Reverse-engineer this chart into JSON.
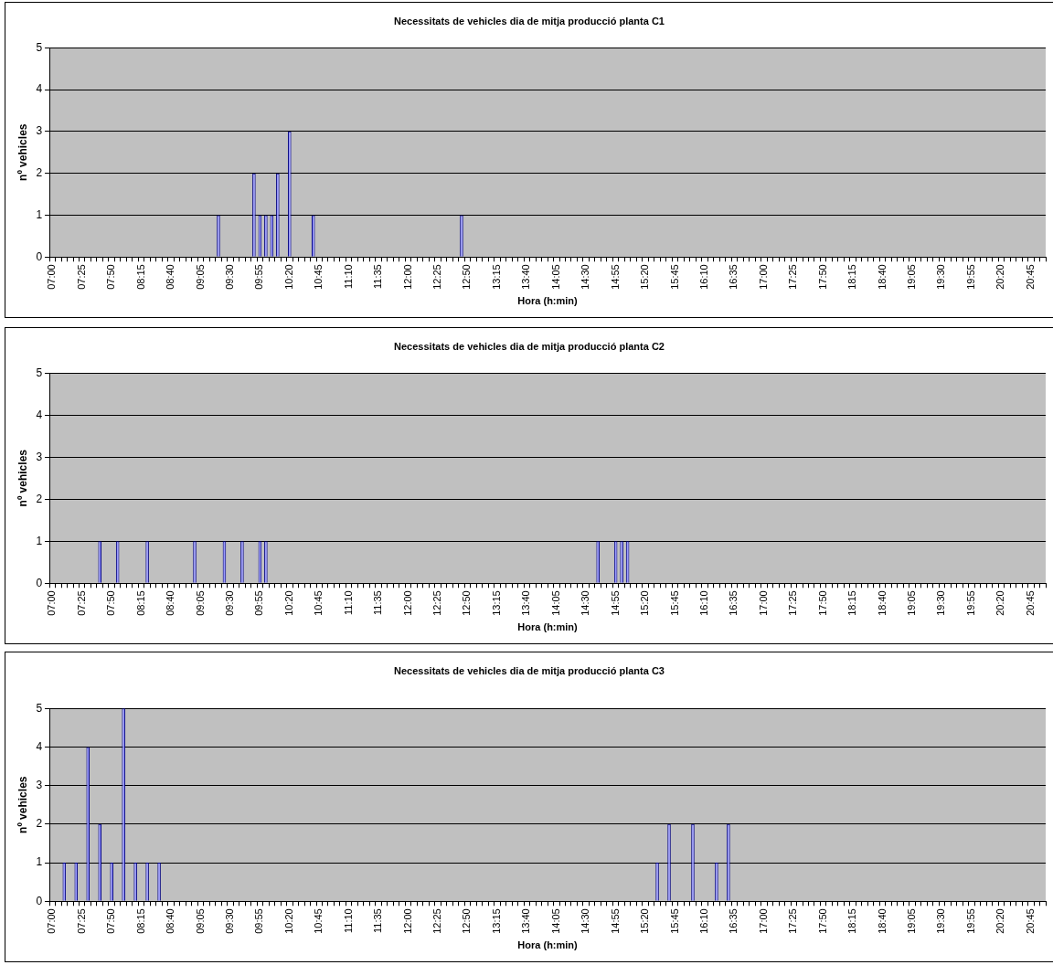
{
  "chart_data": [
    {
      "type": "bar",
      "title": "Necessitats de vehicles dia de mitja producció planta C1",
      "xlabel": "Hora (h:min)",
      "ylabel": "nº vehicles",
      "categories": [
        "07:00",
        null,
        null,
        null,
        null,
        "07:25",
        null,
        null,
        null,
        null,
        "07:50",
        null,
        null,
        null,
        null,
        "08:15",
        null,
        null,
        null,
        null,
        "08:40",
        null,
        null,
        null,
        null,
        "09:05",
        null,
        null,
        null,
        null,
        "09:30",
        null,
        null,
        null,
        null,
        "09:55",
        null,
        null,
        null,
        null,
        "10:20",
        null,
        null,
        null,
        null,
        "10:45",
        null,
        null,
        null,
        null,
        "11:10",
        null,
        null,
        null,
        null,
        "11:35",
        null,
        null,
        null,
        null,
        "12:00",
        null,
        null,
        null,
        null,
        "12:25",
        null,
        null,
        null,
        null,
        "12:50",
        null,
        null,
        null,
        null,
        "13:15",
        null,
        null,
        null,
        null,
        "13:40",
        null,
        null,
        null,
        null,
        "14:05",
        null,
        null,
        null,
        null,
        "14:30",
        null,
        null,
        null,
        null,
        "14:55",
        null,
        null,
        null,
        null,
        "15:20",
        null,
        null,
        null,
        null,
        "15:45",
        null,
        null,
        null,
        null,
        "16:10",
        null,
        null,
        null,
        null,
        "16:35",
        null,
        null,
        null,
        null,
        "17:00",
        null,
        null,
        null,
        null,
        "17:25",
        null,
        null,
        null,
        null,
        "17:50",
        null,
        null,
        null,
        null,
        "18:15",
        null,
        null,
        null,
        null,
        "18:40",
        null,
        null,
        null,
        null,
        "19:05",
        null,
        null,
        null,
        null,
        "19:30",
        null,
        null,
        null,
        null,
        "19:55",
        null,
        null,
        null,
        null,
        "20:20",
        null,
        null,
        null,
        null,
        "20:45",
        null,
        null
      ],
      "values": [
        0,
        0,
        0,
        0,
        0,
        0,
        0,
        0,
        0,
        0,
        0,
        0,
        0,
        0,
        0,
        0,
        0,
        0,
        0,
        0,
        0,
        0,
        0,
        0,
        0,
        0,
        0,
        0,
        1,
        0,
        0,
        0,
        0,
        0,
        2,
        1,
        1,
        1,
        2,
        0,
        3,
        0,
        0,
        0,
        1,
        0,
        0,
        0,
        0,
        0,
        0,
        0,
        0,
        0,
        0,
        0,
        0,
        0,
        0,
        0,
        0,
        0,
        0,
        0,
        0,
        0,
        0,
        0,
        0,
        1,
        0,
        0,
        0,
        0,
        0,
        0,
        0,
        0,
        0,
        0,
        0,
        0,
        0,
        0,
        0,
        0,
        0,
        0,
        0,
        0,
        0,
        0,
        0,
        0,
        0,
        0,
        0,
        0,
        0,
        0,
        0,
        0,
        0,
        0,
        0,
        0,
        0,
        0,
        0,
        0,
        0,
        0,
        0,
        0,
        0,
        0,
        0,
        0,
        0,
        0,
        0,
        0,
        0,
        0,
        0,
        0,
        0,
        0,
        0,
        0,
        0,
        0,
        0,
        0,
        0,
        0,
        0,
        0,
        0,
        0,
        0,
        0,
        0,
        0,
        0,
        0,
        0,
        0,
        0,
        0,
        0,
        0,
        0,
        0,
        0,
        0,
        0,
        0,
        0,
        0,
        0,
        0,
        0,
        0,
        0,
        0,
        0,
        0
      ],
      "color": "#9999ff",
      "ylim": [
        0,
        5
      ],
      "yticks": [
        0,
        1,
        2,
        3,
        4,
        5
      ],
      "grid": "y",
      "legend": false
    },
    {
      "type": "bar",
      "title": "Necessitats de vehicles dia de mitja producció planta C2",
      "xlabel": "Hora (h:min)",
      "ylabel": "nº vehicles",
      "categories": [
        "07:00",
        null,
        null,
        null,
        null,
        "07:25",
        null,
        null,
        null,
        null,
        "07:50",
        null,
        null,
        null,
        null,
        "08:15",
        null,
        null,
        null,
        null,
        "08:40",
        null,
        null,
        null,
        null,
        "09:05",
        null,
        null,
        null,
        null,
        "09:30",
        null,
        null,
        null,
        null,
        "09:55",
        null,
        null,
        null,
        null,
        "10:20",
        null,
        null,
        null,
        null,
        "10:45",
        null,
        null,
        null,
        null,
        "11:10",
        null,
        null,
        null,
        null,
        "11:35",
        null,
        null,
        null,
        null,
        "12:00",
        null,
        null,
        null,
        null,
        "12:25",
        null,
        null,
        null,
        null,
        "12:50",
        null,
        null,
        null,
        null,
        "13:15",
        null,
        null,
        null,
        null,
        "13:40",
        null,
        null,
        null,
        null,
        "14:05",
        null,
        null,
        null,
        null,
        "14:30",
        null,
        null,
        null,
        null,
        "14:55",
        null,
        null,
        null,
        null,
        "15:20",
        null,
        null,
        null,
        null,
        "15:45",
        null,
        null,
        null,
        null,
        "16:10",
        null,
        null,
        null,
        null,
        "16:35",
        null,
        null,
        null,
        null,
        "17:00",
        null,
        null,
        null,
        null,
        "17:25",
        null,
        null,
        null,
        null,
        "17:50",
        null,
        null,
        null,
        null,
        "18:15",
        null,
        null,
        null,
        null,
        "18:40",
        null,
        null,
        null,
        null,
        "19:05",
        null,
        null,
        null,
        null,
        "19:30",
        null,
        null,
        null,
        null,
        "19:55",
        null,
        null,
        null,
        null,
        "20:20",
        null,
        null,
        null,
        null,
        "20:45",
        null,
        null
      ],
      "values": [
        0,
        0,
        0,
        0,
        0,
        0,
        0,
        0,
        1,
        0,
        0,
        1,
        0,
        0,
        0,
        0,
        1,
        0,
        0,
        0,
        0,
        0,
        0,
        0,
        1,
        0,
        0,
        0,
        0,
        1,
        0,
        0,
        1,
        0,
        0,
        1,
        1,
        0,
        0,
        0,
        0,
        0,
        0,
        0,
        0,
        0,
        0,
        0,
        0,
        0,
        0,
        0,
        0,
        0,
        0,
        0,
        0,
        0,
        0,
        0,
        0,
        0,
        0,
        0,
        0,
        0,
        0,
        0,
        0,
        0,
        0,
        0,
        0,
        0,
        0,
        0,
        0,
        0,
        0,
        0,
        0,
        0,
        0,
        0,
        0,
        0,
        0,
        0,
        0,
        0,
        0,
        0,
        1,
        0,
        0,
        1,
        1,
        1,
        0,
        0,
        0,
        0,
        0,
        0,
        0,
        0,
        0,
        0,
        0,
        0,
        0,
        0,
        0,
        0,
        0,
        0,
        0,
        0,
        0,
        0,
        0,
        0,
        0,
        0,
        0,
        0,
        0,
        0,
        0,
        0,
        0,
        0,
        0,
        0,
        0,
        0,
        0,
        0,
        0,
        0,
        0,
        0,
        0,
        0,
        0,
        0,
        0,
        0,
        0,
        0,
        0,
        0,
        0,
        0,
        0,
        0,
        0,
        0,
        0,
        0,
        0,
        0,
        0,
        0,
        0,
        0,
        0,
        0
      ],
      "color": "#9999ff",
      "ylim": [
        0,
        5
      ],
      "yticks": [
        0,
        1,
        2,
        3,
        4,
        5
      ],
      "grid": "y",
      "legend": false
    },
    {
      "type": "bar",
      "title": "Necessitats de vehicles dia de mitja producció planta C3",
      "xlabel": "Hora (h:min)",
      "ylabel": "nº vehicles",
      "categories": [
        "07:00",
        null,
        null,
        null,
        null,
        "07:25",
        null,
        null,
        null,
        null,
        "07:50",
        null,
        null,
        null,
        null,
        "08:15",
        null,
        null,
        null,
        null,
        "08:40",
        null,
        null,
        null,
        null,
        "09:05",
        null,
        null,
        null,
        null,
        "09:30",
        null,
        null,
        null,
        null,
        "09:55",
        null,
        null,
        null,
        null,
        "10:20",
        null,
        null,
        null,
        null,
        "10:45",
        null,
        null,
        null,
        null,
        "11:10",
        null,
        null,
        null,
        null,
        "11:35",
        null,
        null,
        null,
        null,
        "12:00",
        null,
        null,
        null,
        null,
        "12:25",
        null,
        null,
        null,
        null,
        "12:50",
        null,
        null,
        null,
        null,
        "13:15",
        null,
        null,
        null,
        null,
        "13:40",
        null,
        null,
        null,
        null,
        "14:05",
        null,
        null,
        null,
        null,
        "14:30",
        null,
        null,
        null,
        null,
        "14:55",
        null,
        null,
        null,
        null,
        "15:20",
        null,
        null,
        null,
        null,
        "15:45",
        null,
        null,
        null,
        null,
        "16:10",
        null,
        null,
        null,
        null,
        "16:35",
        null,
        null,
        null,
        null,
        "17:00",
        null,
        null,
        null,
        null,
        "17:25",
        null,
        null,
        null,
        null,
        "17:50",
        null,
        null,
        null,
        null,
        "18:15",
        null,
        null,
        null,
        null,
        "18:40",
        null,
        null,
        null,
        null,
        "19:05",
        null,
        null,
        null,
        null,
        "19:30",
        null,
        null,
        null,
        null,
        "19:55",
        null,
        null,
        null,
        null,
        "20:20",
        null,
        null,
        null,
        null,
        "20:45",
        null,
        null
      ],
      "values": [
        0,
        0,
        1,
        0,
        1,
        0,
        4,
        0,
        2,
        0,
        1,
        0,
        5,
        0,
        1,
        0,
        1,
        0,
        1,
        0,
        0,
        0,
        0,
        0,
        0,
        0,
        0,
        0,
        0,
        0,
        0,
        0,
        0,
        0,
        0,
        0,
        0,
        0,
        0,
        0,
        0,
        0,
        0,
        0,
        0,
        0,
        0,
        0,
        0,
        0,
        0,
        0,
        0,
        0,
        0,
        0,
        0,
        0,
        0,
        0,
        0,
        0,
        0,
        0,
        0,
        0,
        0,
        0,
        0,
        0,
        0,
        0,
        0,
        0,
        0,
        0,
        0,
        0,
        0,
        0,
        0,
        0,
        0,
        0,
        0,
        0,
        0,
        0,
        0,
        0,
        0,
        0,
        0,
        0,
        0,
        0,
        0,
        0,
        0,
        0,
        0,
        0,
        1,
        0,
        2,
        0,
        0,
        0,
        2,
        0,
        0,
        0,
        1,
        0,
        2,
        0,
        0,
        0,
        0,
        0,
        0,
        0,
        0,
        0,
        0,
        0,
        0,
        0,
        0,
        0,
        0,
        0,
        0,
        0,
        0,
        0,
        0,
        0,
        0,
        0,
        0,
        0,
        0,
        0,
        0,
        0,
        0,
        0,
        0,
        0,
        0,
        0,
        0,
        0,
        0,
        0,
        0,
        0,
        0,
        0,
        0,
        0,
        0,
        0,
        0,
        0,
        0,
        0
      ],
      "color": "#9999ff",
      "ylim": [
        0,
        5
      ],
      "yticks": [
        0,
        1,
        2,
        3,
        4,
        5
      ],
      "grid": "y",
      "legend": false
    }
  ]
}
